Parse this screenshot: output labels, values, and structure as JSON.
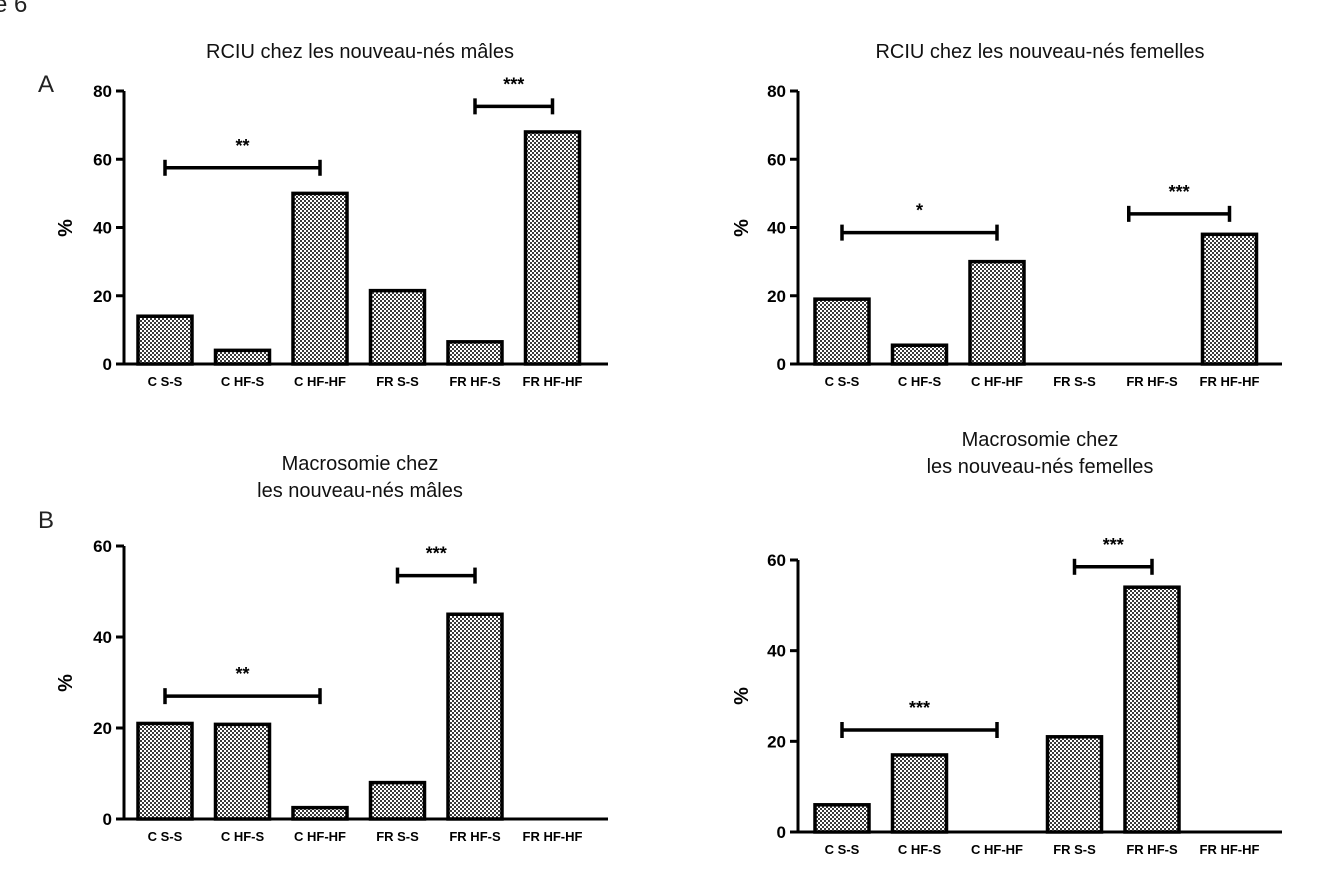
{
  "figure": {
    "corner_fragment": "e 6"
  },
  "chart_data": [
    {
      "type": "bar",
      "panel": "A",
      "title_lines": [
        "RCIU chez les nouveau-nés mâles"
      ],
      "ylabel": "%",
      "ylim": [
        0,
        80
      ],
      "yticks": [
        0,
        20,
        40,
        60,
        80
      ],
      "categories": [
        "C S-S",
        "C HF-S",
        "C HF-HF",
        "FR S-S",
        "FR HF-S",
        "FR HF-HF"
      ],
      "values": [
        14,
        4,
        50,
        21.5,
        6.5,
        68
      ],
      "brackets": [
        {
          "from": 0,
          "to": 2,
          "y": 57.5,
          "label": "**"
        },
        {
          "from": 4,
          "to": 5,
          "y": 75.5,
          "label": "***"
        }
      ]
    },
    {
      "type": "bar",
      "panel": "",
      "title_lines": [
        "RCIU chez les nouveau-nés femelles"
      ],
      "ylabel": "%",
      "ylim": [
        0,
        80
      ],
      "yticks": [
        0,
        20,
        40,
        60,
        80
      ],
      "categories": [
        "C S-S",
        "C HF-S",
        "C HF-HF",
        "FR S-S",
        "FR HF-S",
        "FR HF-HF"
      ],
      "values": [
        19,
        5.5,
        30,
        0,
        0,
        38
      ],
      "brackets": [
        {
          "from": 0,
          "to": 2,
          "y": 38.5,
          "label": "*"
        },
        {
          "from": 3.7,
          "to": 5,
          "y": 44,
          "label": "***"
        }
      ]
    },
    {
      "type": "bar",
      "panel": "B",
      "title_lines": [
        "Macrosomie chez",
        "les nouveau-nés mâles"
      ],
      "ylabel": "%",
      "ylim": [
        0,
        60
      ],
      "yticks": [
        0,
        20,
        40,
        60
      ],
      "categories": [
        "C S-S",
        "C HF-S",
        "C HF-HF",
        "FR S-S",
        "FR HF-S",
        "FR HF-HF"
      ],
      "values": [
        21,
        20.8,
        2.5,
        8,
        45,
        0
      ],
      "brackets": [
        {
          "from": 0,
          "to": 2,
          "y": 27,
          "label": "**"
        },
        {
          "from": 3,
          "to": 4,
          "y": 53.5,
          "label": "***"
        }
      ]
    },
    {
      "type": "bar",
      "panel": "",
      "title_lines": [
        "Macrosomie chez",
        "les nouveau-nés femelles"
      ],
      "ylabel": "%",
      "ylim": [
        0,
        60
      ],
      "yticks": [
        0,
        20,
        40,
        60
      ],
      "categories": [
        "C S-S",
        "C HF-S",
        "C HF-HF",
        "FR S-S",
        "FR HF-S",
        "FR HF-HF"
      ],
      "values": [
        6,
        17,
        0,
        21,
        54,
        0
      ],
      "brackets": [
        {
          "from": 0,
          "to": 2,
          "y": 22.5,
          "label": "***"
        },
        {
          "from": 3,
          "to": 4,
          "y": 58.5,
          "label": "***"
        }
      ]
    }
  ]
}
